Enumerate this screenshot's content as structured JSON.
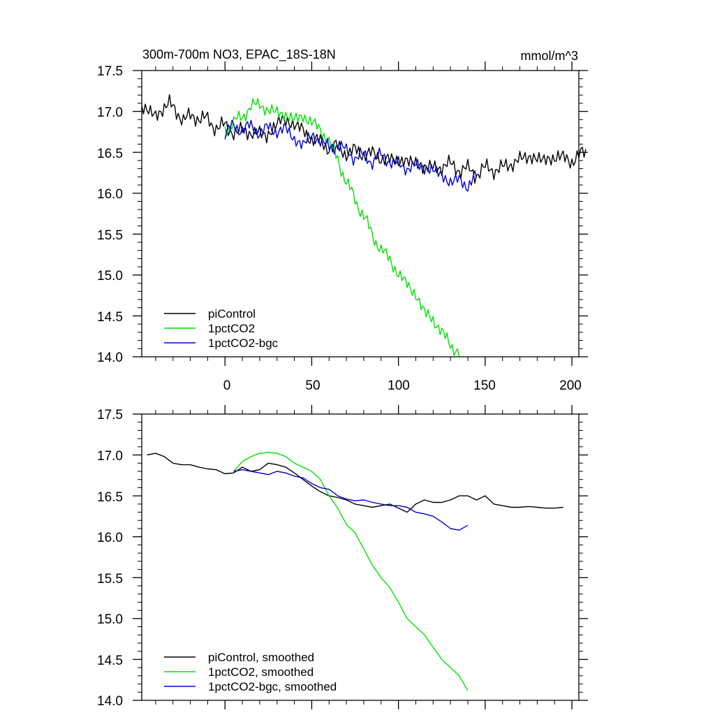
{
  "colors": {
    "piControl": "#000000",
    "pct": "#00e000",
    "bgc": "#0000d0",
    "axis": "#000000"
  },
  "chart_data": [
    {
      "type": "line",
      "title": "300m-700m NO3, EPAC_18S-18N",
      "units": "mmol/m^3",
      "xlim": [
        -48,
        204
      ],
      "ylim": [
        14.0,
        17.5
      ],
      "xticks": [
        0,
        50,
        100,
        150,
        200
      ],
      "xtick_labels": [
        "0",
        "50",
        "100",
        "150",
        "200"
      ],
      "yticks": [
        14.0,
        14.5,
        15.0,
        15.5,
        16.0,
        16.5,
        17.0,
        17.5
      ],
      "ytick_labels": [
        "14.0",
        "14.5",
        "15.0",
        "15.5",
        "16.0",
        "16.5",
        "17.0",
        "17.5"
      ],
      "legend_position": "bottom-left",
      "series": [
        {
          "name": "piControl",
          "color_key": "piControl",
          "x_start": -48,
          "x_step": 8,
          "values": [
            17.05,
            16.95,
            17.1,
            16.9,
            16.95,
            16.85,
            16.8,
            16.75,
            16.75,
            16.7,
            16.9,
            16.85,
            16.7,
            16.6,
            16.55,
            16.5,
            16.5,
            16.45,
            16.4,
            16.4,
            16.35,
            16.3,
            16.35,
            16.3,
            16.25,
            16.3,
            16.3,
            16.4,
            16.45,
            16.4,
            16.45,
            16.4,
            16.5
          ]
        },
        {
          "name": "1pctCO2",
          "color_key": "pct",
          "x_start": 0,
          "x_step": 5,
          "values": [
            16.8,
            16.85,
            16.95,
            17.05,
            17.1,
            17.0,
            17.0,
            16.95,
            16.9,
            16.95,
            16.85,
            16.8,
            16.6,
            16.45,
            16.1,
            15.95,
            15.7,
            15.5,
            15.3,
            15.2,
            15.0,
            14.9,
            14.75,
            14.55,
            14.45,
            14.3,
            14.15,
            14.05
          ]
        },
        {
          "name": "1pctCO2-bgc",
          "color_key": "bgc",
          "x_start": 0,
          "x_step": 5,
          "values": [
            16.75,
            16.8,
            16.8,
            16.8,
            16.75,
            16.8,
            16.75,
            16.8,
            16.65,
            16.6,
            16.7,
            16.65,
            16.55,
            16.6,
            16.5,
            16.45,
            16.45,
            16.4,
            16.45,
            16.4,
            16.35,
            16.3,
            16.35,
            16.3,
            16.3,
            16.2,
            16.15,
            16.15,
            16.1,
            16.2
          ]
        }
      ]
    },
    {
      "type": "line",
      "title": "",
      "units": "",
      "xlim": [
        -48,
        204
      ],
      "ylim": [
        14.0,
        17.5
      ],
      "xticks": [
        0,
        50,
        100,
        150,
        200
      ],
      "xtick_labels": [],
      "yticks": [
        14.0,
        14.5,
        15.0,
        15.5,
        16.0,
        16.5,
        17.0,
        17.5
      ],
      "ytick_labels": [
        "14.0",
        "14.5",
        "15.0",
        "15.5",
        "16.0",
        "16.5",
        "17.0",
        "17.5"
      ],
      "legend_position": "bottom-left",
      "series": [
        {
          "name": "piControl, smoothed",
          "color_key": "piControl",
          "x_start": -45,
          "x_step": 5,
          "values": [
            17.0,
            17.02,
            16.98,
            16.9,
            16.88,
            16.88,
            16.85,
            16.83,
            16.82,
            16.77,
            16.78,
            16.85,
            16.8,
            16.82,
            16.9,
            16.88,
            16.85,
            16.78,
            16.7,
            16.62,
            16.55,
            16.5,
            16.48,
            16.45,
            16.4,
            16.38,
            16.36,
            16.38,
            16.4,
            16.35,
            16.3,
            16.4,
            16.45,
            16.42,
            16.42,
            16.45,
            16.5,
            16.5,
            16.45,
            16.5,
            16.4,
            16.38,
            16.36,
            16.36,
            16.37,
            16.36,
            16.35,
            16.35,
            16.36
          ]
        },
        {
          "name": "1pctCO2, smoothed",
          "color_key": "pct",
          "x_start": 5,
          "x_step": 5,
          "values": [
            16.8,
            16.92,
            16.98,
            17.02,
            17.03,
            17.02,
            16.98,
            16.9,
            16.85,
            16.8,
            16.7,
            16.5,
            16.35,
            16.15,
            16.05,
            15.85,
            15.65,
            15.5,
            15.38,
            15.2,
            15.0,
            14.9,
            14.8,
            14.65,
            14.5,
            14.4,
            14.3,
            14.12
          ]
        },
        {
          "name": "1pctCO2-bgc, smoothed",
          "color_key": "bgc",
          "x_start": 5,
          "x_step": 5,
          "values": [
            16.8,
            16.82,
            16.8,
            16.78,
            16.76,
            16.8,
            16.78,
            16.74,
            16.72,
            16.65,
            16.6,
            16.58,
            16.5,
            16.46,
            16.44,
            16.45,
            16.42,
            16.4,
            16.38,
            16.38,
            16.36,
            16.3,
            16.28,
            16.25,
            16.18,
            16.1,
            16.08,
            16.14
          ]
        }
      ]
    }
  ]
}
